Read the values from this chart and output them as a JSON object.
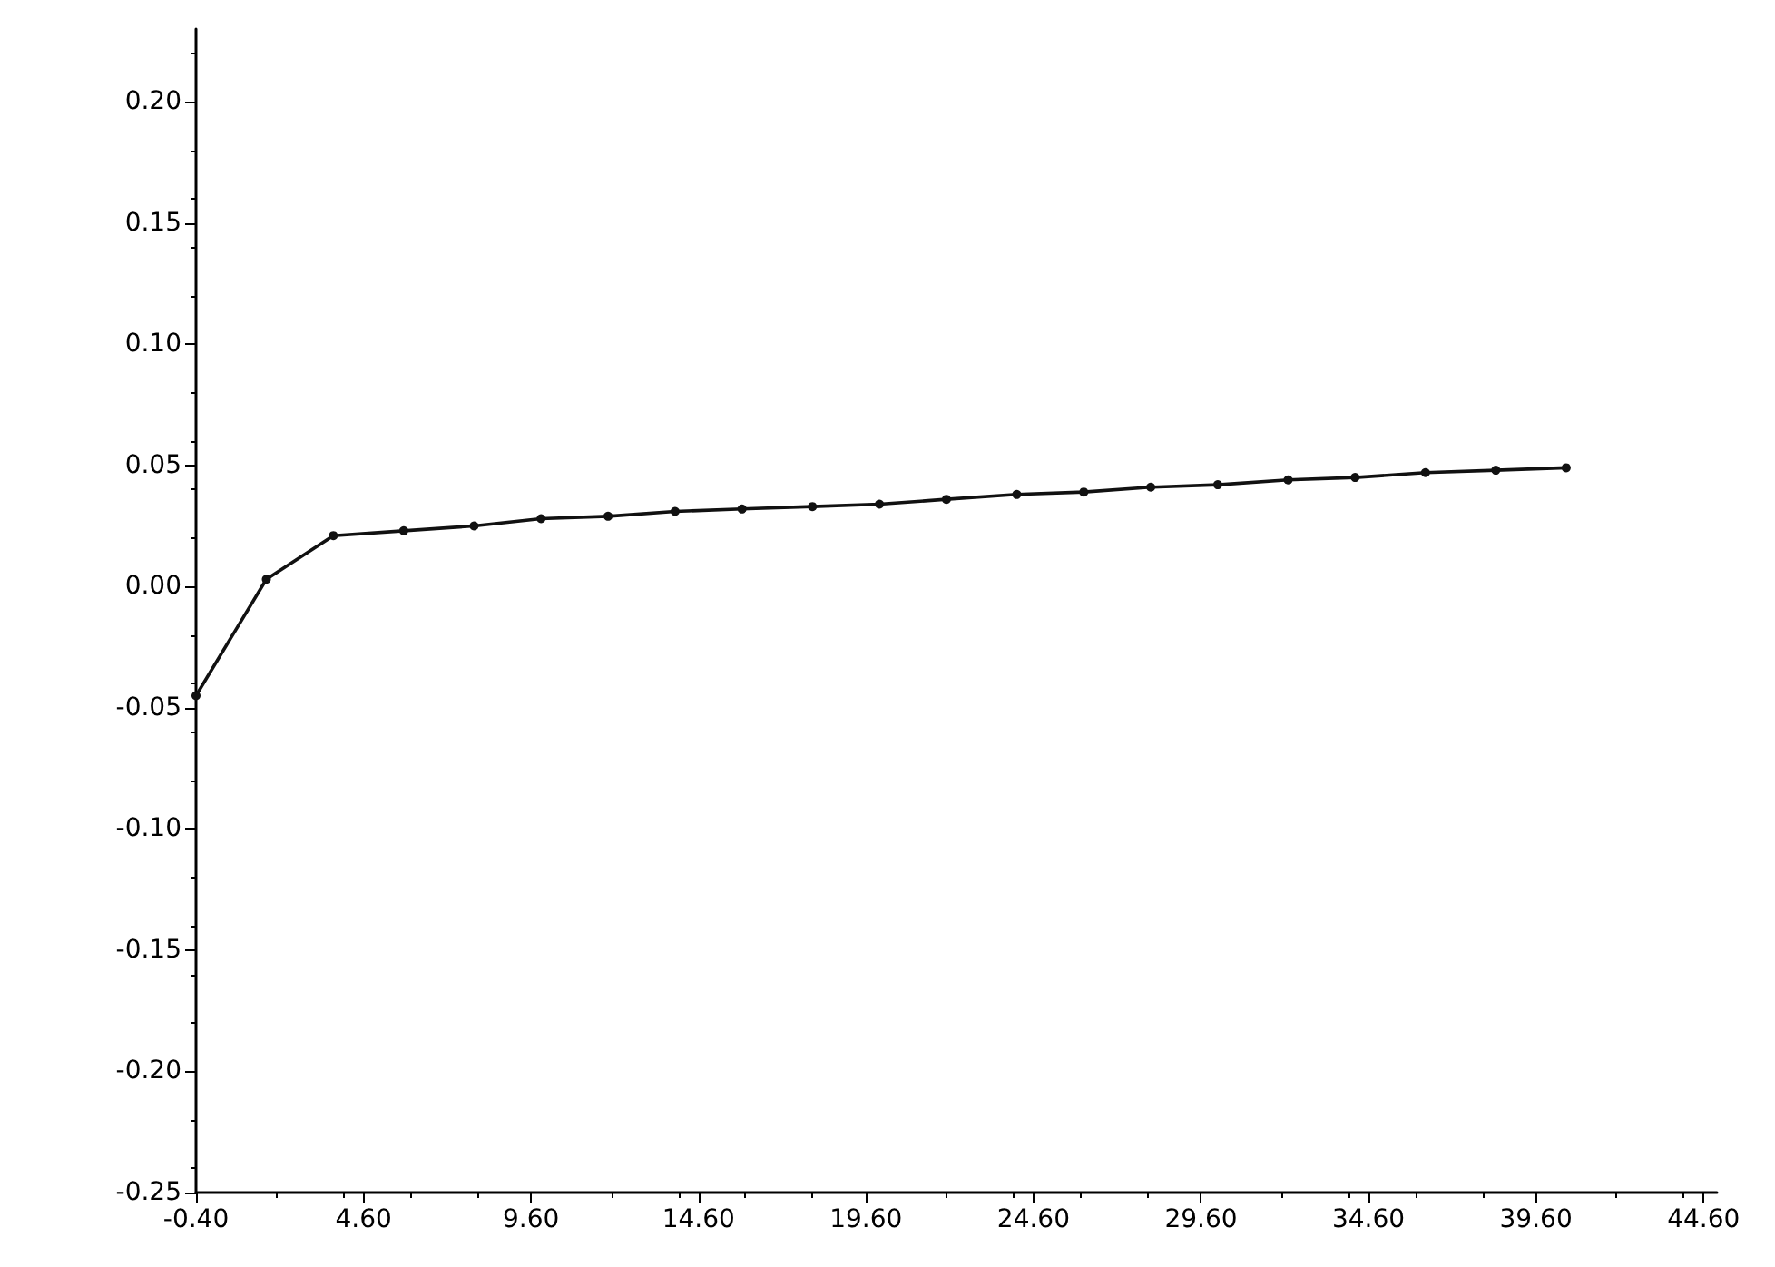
{
  "chart_data": {
    "type": "line",
    "marker": "circle",
    "line_style": "solid",
    "x": [
      -0.4,
      1.7,
      3.7,
      5.8,
      7.9,
      9.9,
      11.9,
      13.9,
      15.9,
      18.0,
      20.0,
      22.0,
      24.1,
      26.1,
      28.1,
      30.1,
      32.2,
      34.2,
      36.3,
      38.4,
      40.5
    ],
    "series": [
      {
        "color": "#111111",
        "values": [
          -0.045,
          0.003,
          0.021,
          0.023,
          0.025,
          0.028,
          0.029,
          0.031,
          0.032,
          0.033,
          0.034,
          0.036,
          0.038,
          0.039,
          0.041,
          0.042,
          0.044,
          0.045,
          0.047,
          0.048,
          0.049
        ]
      }
    ],
    "xlim": [
      -0.4,
      45
    ],
    "xticks": [
      {
        "value": -0.4,
        "label": "-0.40"
      },
      {
        "value": 4.6,
        "label": "4.60"
      },
      {
        "value": 9.6,
        "label": "9.60"
      },
      {
        "value": 14.6,
        "label": "14.60"
      },
      {
        "value": 19.6,
        "label": "19.60"
      },
      {
        "value": 24.6,
        "label": "24.60"
      },
      {
        "value": 29.6,
        "label": "29.60"
      },
      {
        "value": 34.6,
        "label": "34.60"
      },
      {
        "value": 39.6,
        "label": "39.60"
      },
      {
        "value": 44.6,
        "label": "44.60"
      }
    ],
    "ylim": [
      -0.25,
      0.23
    ],
    "yticks": [
      {
        "value": -0.25,
        "label": "-0.25"
      },
      {
        "value": -0.2,
        "label": "-0.20"
      },
      {
        "value": -0.15,
        "label": "-0.15"
      },
      {
        "value": -0.1,
        "label": "-0.10"
      },
      {
        "value": -0.05,
        "label": "-0.05"
      },
      {
        "value": 0,
        "label": "0.00"
      },
      {
        "value": 0.05,
        "label": "0.05"
      },
      {
        "value": 0.1,
        "label": "0.10"
      },
      {
        "value": 0.15,
        "label": "0.15"
      },
      {
        "value": 0.2,
        "label": "0.20"
      }
    ]
  }
}
